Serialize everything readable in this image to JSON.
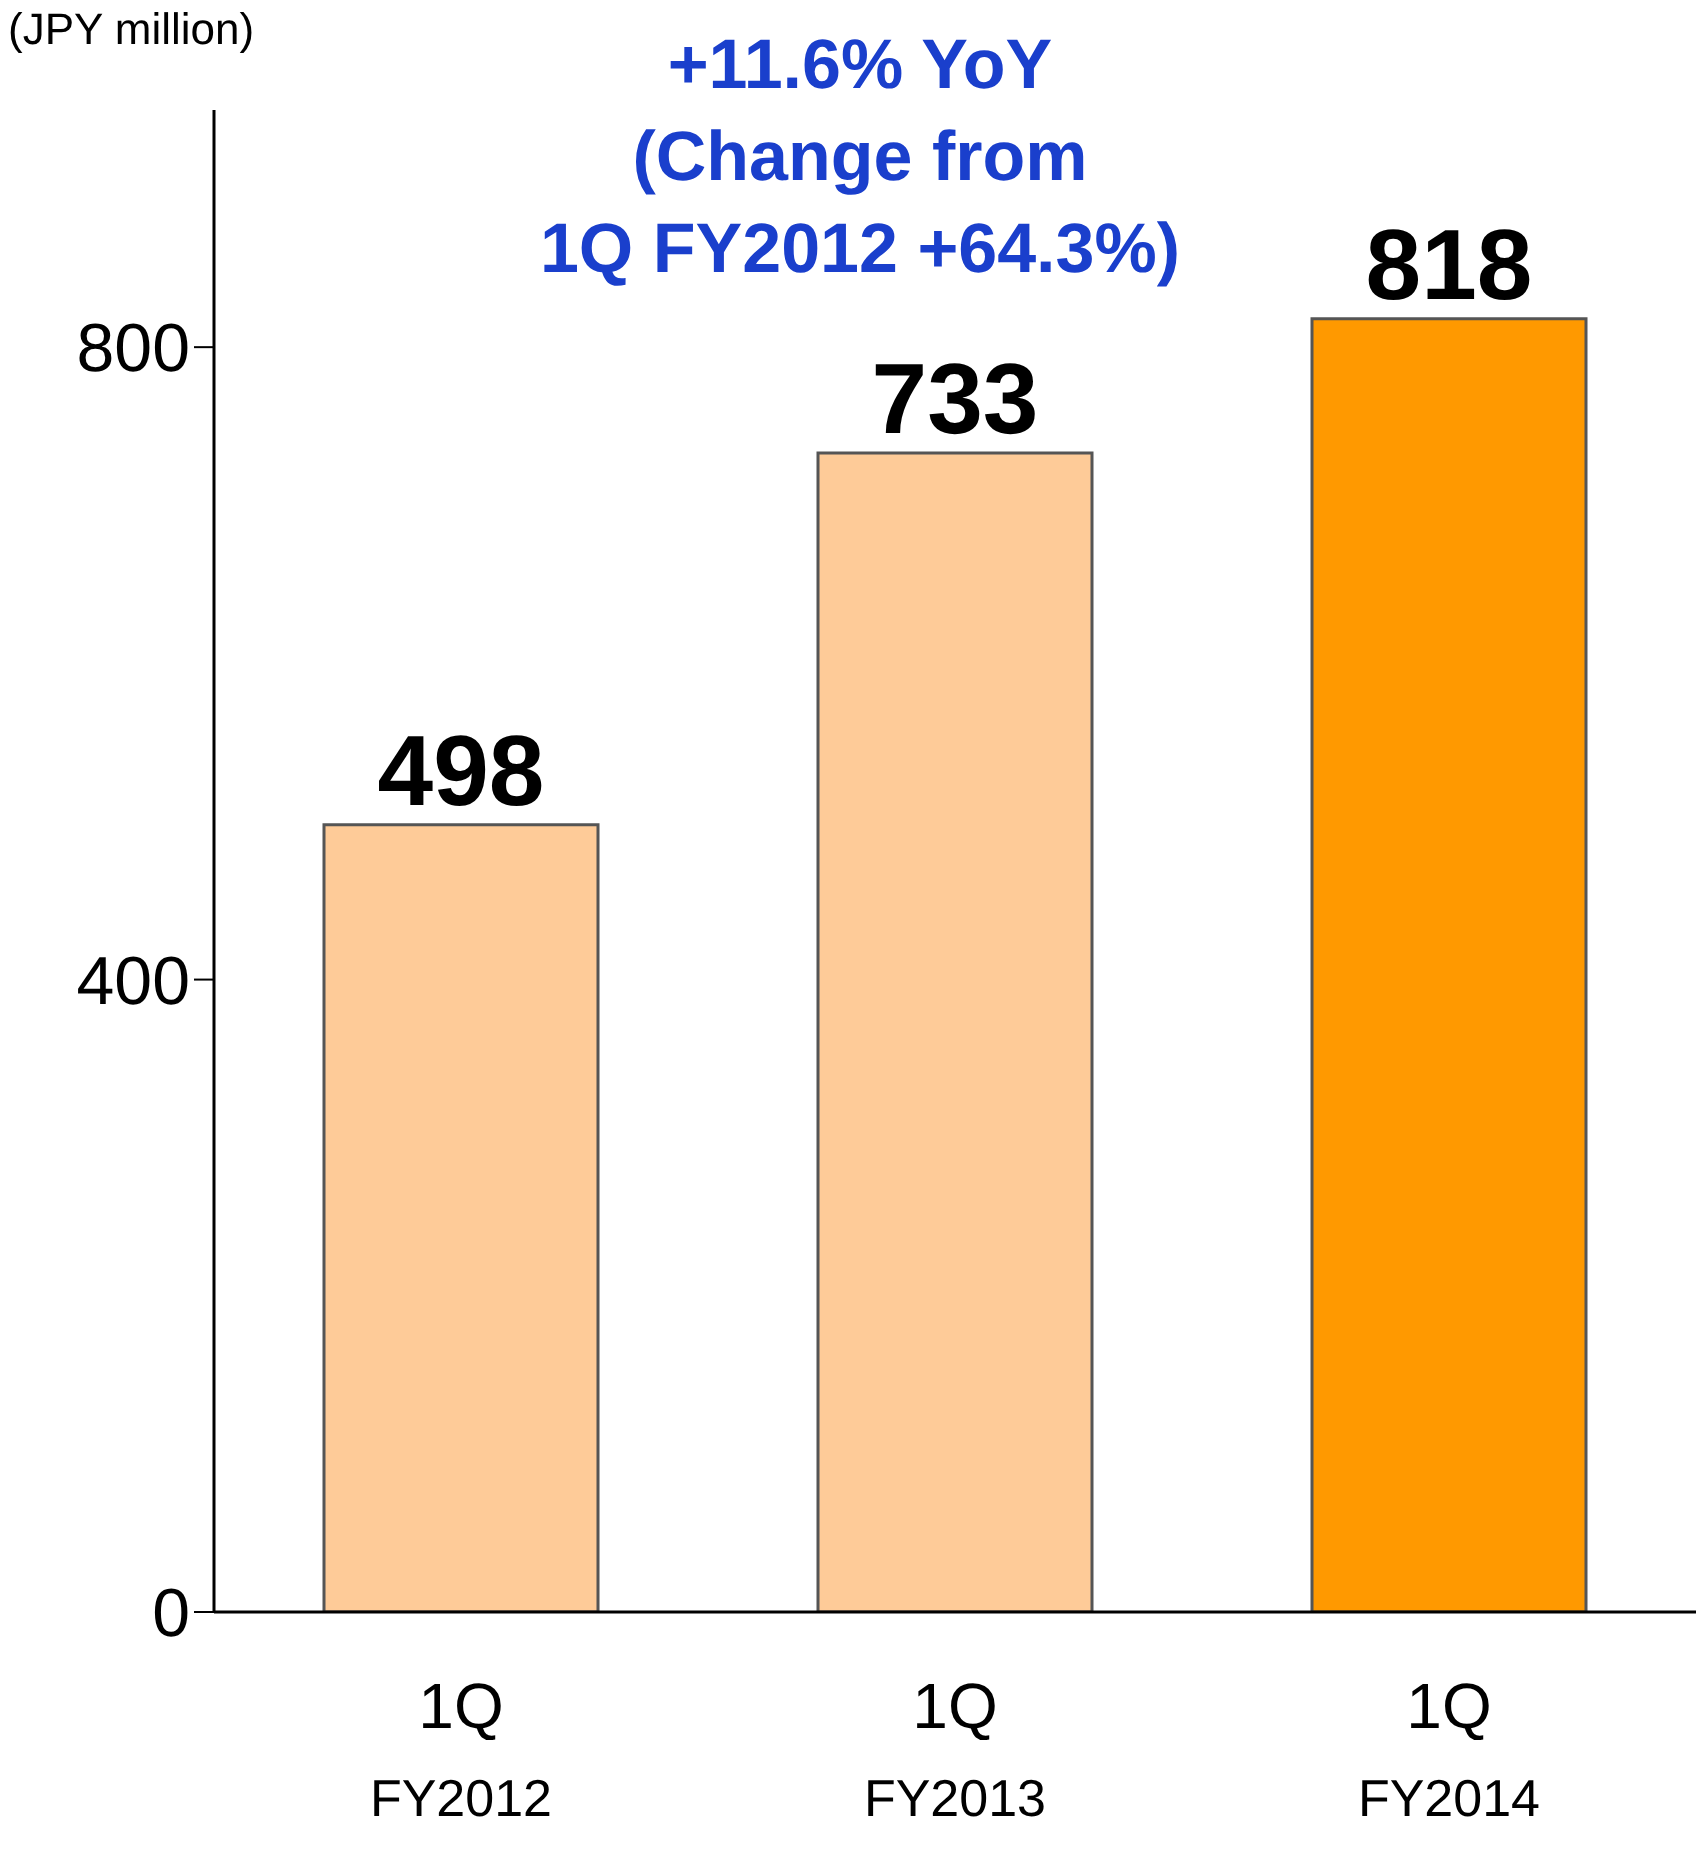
{
  "chart_data": {
    "type": "bar",
    "ylabel": "(JPY million)",
    "categories": [
      "1Q FY2012",
      "1Q FY2013",
      "1Q FY2014"
    ],
    "values": [
      498,
      733,
      818
    ],
    "colors": [
      "#fecb98",
      "#fecb98",
      "#ff9900"
    ],
    "ylim": [
      0,
      950
    ],
    "yticks": [
      0,
      400,
      800
    ],
    "grid": false,
    "data_labels": true,
    "annotations": [
      "+11.6% YoY",
      "(Change from",
      "1Q FY2012 +64.3%)"
    ]
  }
}
